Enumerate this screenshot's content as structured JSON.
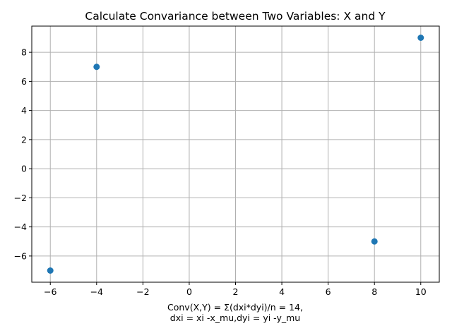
{
  "chart_data": {
    "type": "scatter",
    "title": "Calculate Convariance between Two Variables: X and Y",
    "xlabel_lines": [
      "Conv(X,Y) = Σ(dxi*dyi)/n = 14,",
      "dxi = xi -x_mu,dyi = yi -y_mu"
    ],
    "ylabel": "",
    "x": [
      -6,
      -4,
      8,
      10
    ],
    "y": [
      -7,
      7,
      -5,
      9
    ],
    "xlim": [
      -6.8,
      10.8
    ],
    "ylim": [
      -7.8,
      9.8
    ],
    "xticks": [
      -6,
      -4,
      -2,
      0,
      2,
      4,
      6,
      8,
      10
    ],
    "xtick_labels": [
      "−6",
      "−4",
      "−2",
      "0",
      "2",
      "4",
      "6",
      "8",
      "10"
    ],
    "yticks": [
      -6,
      -4,
      -2,
      0,
      2,
      4,
      6,
      8
    ],
    "ytick_labels": [
      "−6",
      "−4",
      "−2",
      "0",
      "2",
      "4",
      "6",
      "8"
    ],
    "grid": true,
    "marker_color": "#1f77b4"
  }
}
